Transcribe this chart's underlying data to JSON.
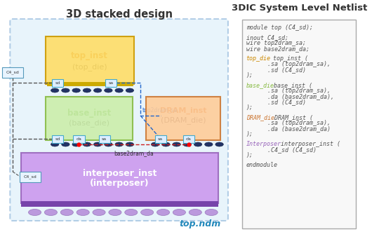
{
  "title_left": "3D stacked design",
  "title_right": "3DIC System Level Netlist",
  "bg_color": "#ffffff",
  "outer_box_color": "#cce8f8",
  "outer_box_edge": "#6699cc",
  "interposer_color": "#cc99ee",
  "interposer_edge": "#9966bb",
  "interposer_bar_color": "#7744aa",
  "top_die_color": "#ffdd66",
  "top_die_edge": "#cc9900",
  "top_die_label1": "top_inst",
  "top_die_label2": "(top_die)",
  "top_die_label1_color": "#cc6600",
  "base_die_color": "#cceeaa",
  "base_die_edge": "#88bb44",
  "base_die_label1": "base_inst",
  "base_die_label2": "(base_die)",
  "base_die_label1_color": "#449922",
  "dram_die_color": "#ffcc99",
  "dram_die_edge": "#cc7733",
  "dram_die_label1": "DRAM_inst",
  "dram_die_label2": "(DRAM_die)",
  "dram_die_label1_color": "#cc5500",
  "netlist_box_color": "#f8f8f8",
  "netlist_box_edge": "#aaaaaa",
  "port_box_color": "#ddeeff",
  "port_box_edge": "#44aacc",
  "bump_color": "#223366",
  "bump_edge": "#112244",
  "solder_color": "#bb99dd",
  "solder_edge": "#9977bb",
  "gold_bar_color": "#ccaa00",
  "c4_box_color": "#e8f4ff",
  "c4_box_edge": "#5599bb",
  "top2dram_wire_color": "#2266cc",
  "base2dram_wire_color": "#cc2222",
  "c4_wire_color": "#555555",
  "top_ndm_color": "#2288bb",
  "kw_top_die": "#cc8800",
  "kw_base_die": "#88bb44",
  "kw_dram_die": "#cc7733",
  "kw_interposer": "#9966bb",
  "text_color": "#555555"
}
